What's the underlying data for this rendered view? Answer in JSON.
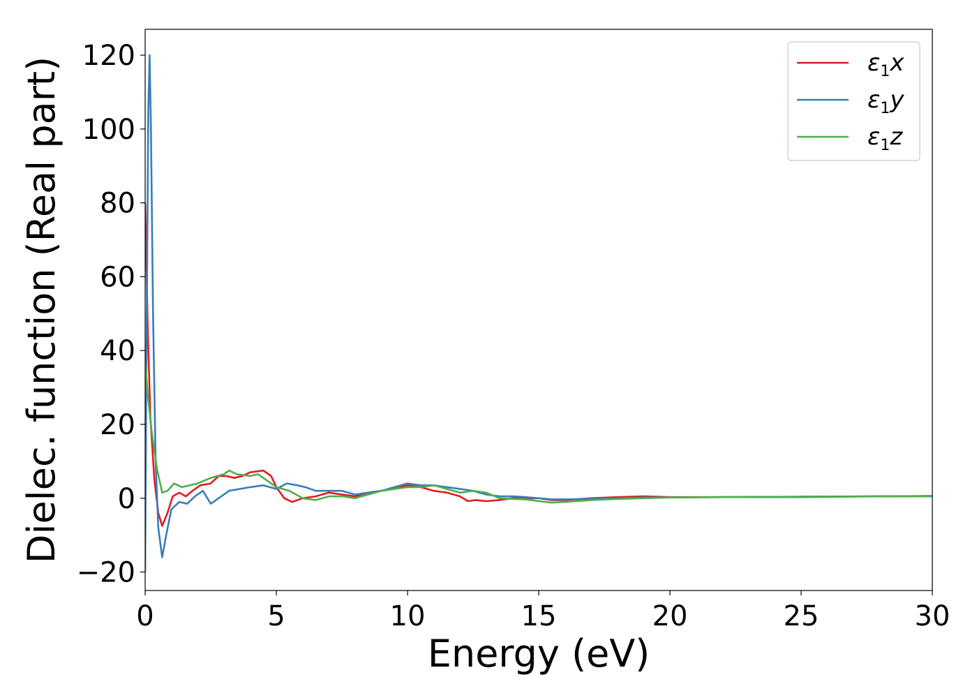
{
  "chart_data": {
    "type": "line",
    "xlabel": "Energy (eV)",
    "ylabel": "Dielec. function (Real part)",
    "xlim": [
      0,
      30
    ],
    "ylim": [
      -25,
      127
    ],
    "xticks": [
      0,
      5,
      10,
      15,
      20,
      25,
      30
    ],
    "yticks": [
      -20,
      0,
      20,
      40,
      60,
      80,
      100,
      120
    ],
    "ytick_labels": [
      "−20",
      "0",
      "20",
      "40",
      "60",
      "80",
      "100",
      "120"
    ],
    "grid": false,
    "legend_position": "top-right",
    "series": [
      {
        "name": "ε1x",
        "legend_main": "ε",
        "legend_sub": "1",
        "legend_var": "x",
        "color": "#e41a1c",
        "points": [
          [
            0,
            80
          ],
          [
            0.1,
            45
          ],
          [
            0.2,
            22
          ],
          [
            0.35,
            5
          ],
          [
            0.5,
            -4
          ],
          [
            0.65,
            -7.5
          ],
          [
            0.85,
            -4
          ],
          [
            1.05,
            0.5
          ],
          [
            1.3,
            1.5
          ],
          [
            1.55,
            0.5
          ],
          [
            1.8,
            2
          ],
          [
            2.1,
            3.5
          ],
          [
            2.5,
            4
          ],
          [
            2.8,
            6
          ],
          [
            3.1,
            6
          ],
          [
            3.4,
            5.5
          ],
          [
            3.7,
            6
          ],
          [
            4.0,
            7
          ],
          [
            4.5,
            7.5
          ],
          [
            4.8,
            6
          ],
          [
            5.0,
            3
          ],
          [
            5.3,
            0
          ],
          [
            5.6,
            -1
          ],
          [
            6.0,
            0
          ],
          [
            6.5,
            0.5
          ],
          [
            7.0,
            1.5
          ],
          [
            7.5,
            1.0
          ],
          [
            8.0,
            0.5
          ],
          [
            8.5,
            1.5
          ],
          [
            9.0,
            2
          ],
          [
            9.5,
            2.5
          ],
          [
            10.0,
            3.5
          ],
          [
            10.5,
            3
          ],
          [
            11.0,
            2
          ],
          [
            11.5,
            1.5
          ],
          [
            12.0,
            0.5
          ],
          [
            12.3,
            -0.8
          ],
          [
            12.6,
            -0.5
          ],
          [
            13.0,
            -0.8
          ],
          [
            13.5,
            -0.5
          ],
          [
            14.0,
            0
          ],
          [
            14.5,
            0
          ],
          [
            15.0,
            0
          ],
          [
            15.5,
            -0.5
          ],
          [
            16.0,
            -0.5
          ],
          [
            17.0,
            0
          ],
          [
            18.0,
            0.3
          ],
          [
            19.0,
            0.5
          ],
          [
            20.0,
            0.3
          ],
          [
            22.0,
            0.3
          ],
          [
            25.0,
            0.4
          ],
          [
            28.0,
            0.5
          ],
          [
            30.0,
            0.6
          ]
        ]
      },
      {
        "name": "ε1y",
        "legend_main": "ε",
        "legend_sub": "1",
        "legend_var": "y",
        "color": "#377eb8",
        "points": [
          [
            0,
            -20
          ],
          [
            0.05,
            40
          ],
          [
            0.12,
            105
          ],
          [
            0.17,
            120
          ],
          [
            0.22,
            100
          ],
          [
            0.3,
            50
          ],
          [
            0.4,
            10
          ],
          [
            0.5,
            -8
          ],
          [
            0.65,
            -16
          ],
          [
            0.8,
            -10
          ],
          [
            1.0,
            -3
          ],
          [
            1.3,
            -1
          ],
          [
            1.6,
            -1.5
          ],
          [
            1.9,
            0.5
          ],
          [
            2.2,
            2
          ],
          [
            2.5,
            -1.5
          ],
          [
            2.8,
            0
          ],
          [
            3.2,
            2
          ],
          [
            3.6,
            2.5
          ],
          [
            4.0,
            3
          ],
          [
            4.5,
            3.5
          ],
          [
            5.0,
            2.5
          ],
          [
            5.4,
            4
          ],
          [
            5.8,
            3.5
          ],
          [
            6.1,
            3
          ],
          [
            6.5,
            2
          ],
          [
            7.0,
            2
          ],
          [
            7.5,
            2
          ],
          [
            8.0,
            1
          ],
          [
            8.5,
            1.5
          ],
          [
            9.0,
            2
          ],
          [
            9.5,
            3
          ],
          [
            10.0,
            4
          ],
          [
            10.5,
            3.5
          ],
          [
            11.0,
            3.5
          ],
          [
            11.5,
            3
          ],
          [
            12.0,
            2.5
          ],
          [
            12.5,
            2
          ],
          [
            13.0,
            1
          ],
          [
            13.5,
            0.5
          ],
          [
            14.0,
            0.5
          ],
          [
            14.5,
            0.3
          ],
          [
            15.0,
            0
          ],
          [
            15.5,
            -0.3
          ],
          [
            16.0,
            -0.3
          ],
          [
            17.0,
            -0.2
          ],
          [
            18.0,
            0
          ],
          [
            19.0,
            0.2
          ],
          [
            20.0,
            0.2
          ],
          [
            22.0,
            0.3
          ],
          [
            25.0,
            0.3
          ],
          [
            28.0,
            0.5
          ],
          [
            30.0,
            0.5
          ]
        ]
      },
      {
        "name": "ε1z",
        "legend_main": "ε",
        "legend_sub": "1",
        "legend_var": "z",
        "color": "#4daf4a",
        "points": [
          [
            0,
            37
          ],
          [
            0.1,
            28
          ],
          [
            0.25,
            18
          ],
          [
            0.45,
            8
          ],
          [
            0.65,
            1.5
          ],
          [
            0.85,
            2
          ],
          [
            1.1,
            4
          ],
          [
            1.4,
            3
          ],
          [
            1.7,
            3.5
          ],
          [
            2.0,
            4
          ],
          [
            2.5,
            5.5
          ],
          [
            3.0,
            6.5
          ],
          [
            3.2,
            7.5
          ],
          [
            3.5,
            6.5
          ],
          [
            4.0,
            6
          ],
          [
            4.3,
            6.5
          ],
          [
            4.6,
            5
          ],
          [
            5.0,
            3
          ],
          [
            5.5,
            2
          ],
          [
            6.0,
            0
          ],
          [
            6.5,
            -0.5
          ],
          [
            7.0,
            0.5
          ],
          [
            7.5,
            0.5
          ],
          [
            8.0,
            0
          ],
          [
            8.5,
            1
          ],
          [
            9.0,
            2
          ],
          [
            9.5,
            2.5
          ],
          [
            10.0,
            3
          ],
          [
            10.5,
            3
          ],
          [
            11.0,
            3.5
          ],
          [
            11.5,
            2.5
          ],
          [
            12.0,
            1.5
          ],
          [
            12.5,
            2
          ],
          [
            13.0,
            1.5
          ],
          [
            13.5,
            0
          ],
          [
            14.0,
            -0.2
          ],
          [
            14.5,
            -0.3
          ],
          [
            15.0,
            -0.8
          ],
          [
            15.5,
            -1.2
          ],
          [
            16.0,
            -1.0
          ],
          [
            17.0,
            -0.5
          ],
          [
            18.0,
            -0.2
          ],
          [
            19.0,
            0
          ],
          [
            20.0,
            0.2
          ],
          [
            22.0,
            0.3
          ],
          [
            25.0,
            0.4
          ],
          [
            28.0,
            0.5
          ],
          [
            30.0,
            0.6
          ]
        ]
      }
    ]
  }
}
